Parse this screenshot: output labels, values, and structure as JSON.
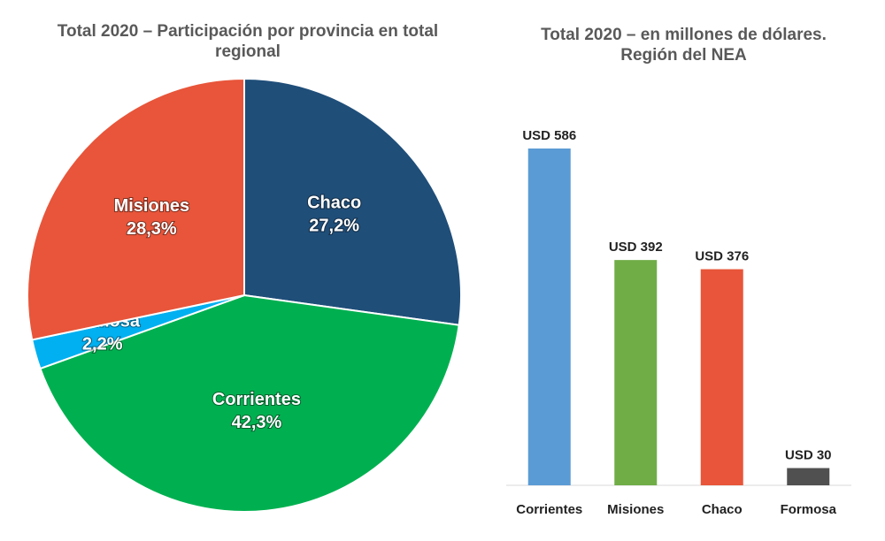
{
  "chart_data": [
    {
      "type": "pie",
      "title": "Total 2020 – Participación por provincia en total regional",
      "categories": [
        "Chaco",
        "Corrientes",
        "Formosa",
        "Misiones"
      ],
      "values": [
        27.2,
        42.3,
        2.2,
        28.3
      ],
      "value_labels": [
        "27,2%",
        "42,3%",
        "2,2%",
        "28,3%"
      ],
      "colors": [
        "#1f4e79",
        "#00b050",
        "#00b0f0",
        "#e8553a"
      ]
    },
    {
      "type": "bar",
      "title": "Total 2020 – en millones de dólares. Región del NEA",
      "categories": [
        "Corrientes",
        "Misiones",
        "Chaco",
        "Formosa"
      ],
      "values": [
        586,
        392,
        376,
        30
      ],
      "value_labels": [
        "USD 586",
        "USD 392",
        "USD 376",
        "USD 30"
      ],
      "colors": [
        "#5b9bd5",
        "#70ad47",
        "#e8553a",
        "#505050"
      ]
    }
  ]
}
